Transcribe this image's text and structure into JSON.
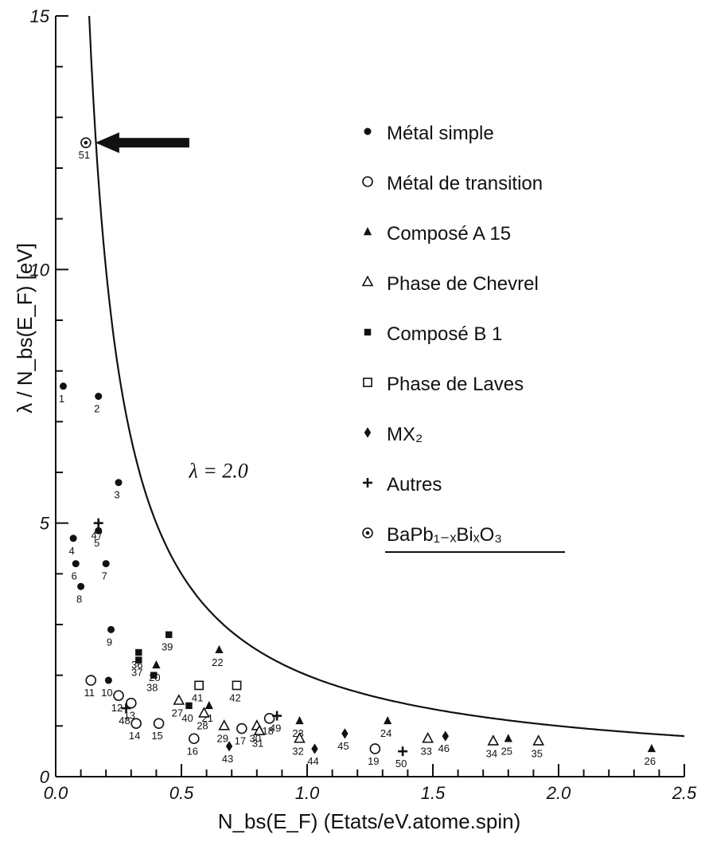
{
  "chart_data": {
    "type": "scatter",
    "xlabel": "N_bs(E_F) (Etats/eV.atome.spin)",
    "ylabel": "λ / N_bs(E_F)   [eV]",
    "xlim": [
      0,
      2.5
    ],
    "ylim": [
      0,
      15
    ],
    "x_ticks": [
      "0.0",
      "0.5",
      "1.0",
      "1.5",
      "2.0",
      "2.5"
    ],
    "y_ticks": [
      "0",
      "5",
      "10",
      "15"
    ],
    "curve": {
      "label": "λ = 2.0",
      "lambda": 2.0
    },
    "legend": [
      {
        "marker": "filled-circle",
        "label": "Métal simple"
      },
      {
        "marker": "open-circle",
        "label": "Métal de transition"
      },
      {
        "marker": "filled-triangle",
        "label": "Composé A 15"
      },
      {
        "marker": "open-triangle",
        "label": "Phase de Chevrel"
      },
      {
        "marker": "filled-square",
        "label": "Composé B 1"
      },
      {
        "marker": "open-square",
        "label": "Phase de Laves"
      },
      {
        "marker": "filled-diamond",
        "label": "MX₂"
      },
      {
        "marker": "plus",
        "label": "Autres"
      },
      {
        "marker": "dotted-circle",
        "label": "BaPb₁₋ₓBiₓO₃"
      }
    ],
    "points": [
      {
        "id": "1",
        "x": 0.03,
        "y": 7.7,
        "marker": "filled-circle"
      },
      {
        "id": "2",
        "x": 0.17,
        "y": 7.5,
        "marker": "filled-circle"
      },
      {
        "id": "3",
        "x": 0.25,
        "y": 5.8,
        "marker": "filled-circle"
      },
      {
        "id": "4",
        "x": 0.07,
        "y": 4.7,
        "marker": "filled-circle"
      },
      {
        "id": "5",
        "x": 0.17,
        "y": 4.85,
        "marker": "filled-circle"
      },
      {
        "id": "6",
        "x": 0.08,
        "y": 4.2,
        "marker": "filled-circle"
      },
      {
        "id": "7",
        "x": 0.2,
        "y": 4.2,
        "marker": "filled-circle"
      },
      {
        "id": "8",
        "x": 0.1,
        "y": 3.75,
        "marker": "filled-circle"
      },
      {
        "id": "9",
        "x": 0.22,
        "y": 2.9,
        "marker": "filled-circle"
      },
      {
        "id": "10",
        "x": 0.21,
        "y": 1.9,
        "marker": "filled-circle"
      },
      {
        "id": "11",
        "x": 0.14,
        "y": 1.9,
        "marker": "open-circle"
      },
      {
        "id": "12",
        "x": 0.25,
        "y": 1.6,
        "marker": "open-circle"
      },
      {
        "id": "13",
        "x": 0.3,
        "y": 1.45,
        "marker": "open-circle"
      },
      {
        "id": "14",
        "x": 0.32,
        "y": 1.05,
        "marker": "open-circle"
      },
      {
        "id": "15",
        "x": 0.41,
        "y": 1.05,
        "marker": "open-circle"
      },
      {
        "id": "16",
        "x": 0.55,
        "y": 0.75,
        "marker": "open-circle"
      },
      {
        "id": "17",
        "x": 0.74,
        "y": 0.95,
        "marker": "open-circle"
      },
      {
        "id": "18",
        "x": 0.85,
        "y": 1.15,
        "marker": "open-circle"
      },
      {
        "id": "19",
        "x": 1.27,
        "y": 0.55,
        "marker": "open-circle"
      },
      {
        "id": "20",
        "x": 0.4,
        "y": 2.2,
        "marker": "filled-triangle"
      },
      {
        "id": "21",
        "x": 0.61,
        "y": 1.4,
        "marker": "filled-triangle"
      },
      {
        "id": "22",
        "x": 0.65,
        "y": 2.5,
        "marker": "filled-triangle"
      },
      {
        "id": "23",
        "x": 0.97,
        "y": 1.1,
        "marker": "filled-triangle"
      },
      {
        "id": "24",
        "x": 1.32,
        "y": 1.1,
        "marker": "filled-triangle"
      },
      {
        "id": "25",
        "x": 1.8,
        "y": 0.75,
        "marker": "filled-triangle"
      },
      {
        "id": "26",
        "x": 2.37,
        "y": 0.55,
        "marker": "filled-triangle"
      },
      {
        "id": "27",
        "x": 0.49,
        "y": 1.5,
        "marker": "open-triangle"
      },
      {
        "id": "28",
        "x": 0.59,
        "y": 1.25,
        "marker": "open-triangle"
      },
      {
        "id": "29",
        "x": 0.67,
        "y": 1.0,
        "marker": "open-triangle"
      },
      {
        "id": "30",
        "x": 0.8,
        "y": 1.0,
        "marker": "open-triangle"
      },
      {
        "id": "31",
        "x": 0.81,
        "y": 0.9,
        "marker": "open-triangle"
      },
      {
        "id": "32",
        "x": 0.97,
        "y": 0.75,
        "marker": "open-triangle"
      },
      {
        "id": "33",
        "x": 1.48,
        "y": 0.75,
        "marker": "open-triangle"
      },
      {
        "id": "34",
        "x": 1.74,
        "y": 0.7,
        "marker": "open-triangle"
      },
      {
        "id": "35",
        "x": 1.92,
        "y": 0.7,
        "marker": "open-triangle"
      },
      {
        "id": "36",
        "x": 0.33,
        "y": 2.45,
        "marker": "filled-square"
      },
      {
        "id": "37",
        "x": 0.33,
        "y": 2.3,
        "marker": "filled-square"
      },
      {
        "id": "38",
        "x": 0.39,
        "y": 2.0,
        "marker": "filled-square"
      },
      {
        "id": "39",
        "x": 0.45,
        "y": 2.8,
        "marker": "filled-square"
      },
      {
        "id": "40",
        "x": 0.53,
        "y": 1.4,
        "marker": "filled-square"
      },
      {
        "id": "41",
        "x": 0.57,
        "y": 1.8,
        "marker": "open-square"
      },
      {
        "id": "42",
        "x": 0.72,
        "y": 1.8,
        "marker": "open-square"
      },
      {
        "id": "43",
        "x": 0.69,
        "y": 0.6,
        "marker": "filled-diamond"
      },
      {
        "id": "44",
        "x": 1.03,
        "y": 0.55,
        "marker": "filled-diamond"
      },
      {
        "id": "45",
        "x": 1.15,
        "y": 0.85,
        "marker": "filled-diamond"
      },
      {
        "id": "46",
        "x": 1.55,
        "y": 0.8,
        "marker": "filled-diamond"
      },
      {
        "id": "47",
        "x": 0.17,
        "y": 5.0,
        "marker": "plus"
      },
      {
        "id": "48",
        "x": 0.28,
        "y": 1.35,
        "marker": "plus"
      },
      {
        "id": "49",
        "x": 0.88,
        "y": 1.2,
        "marker": "plus"
      },
      {
        "id": "50",
        "x": 1.38,
        "y": 0.5,
        "marker": "plus"
      },
      {
        "id": "51",
        "x": 0.12,
        "y": 12.5,
        "marker": "dotted-circle"
      }
    ],
    "highlight_arrow": {
      "target": "51"
    }
  }
}
